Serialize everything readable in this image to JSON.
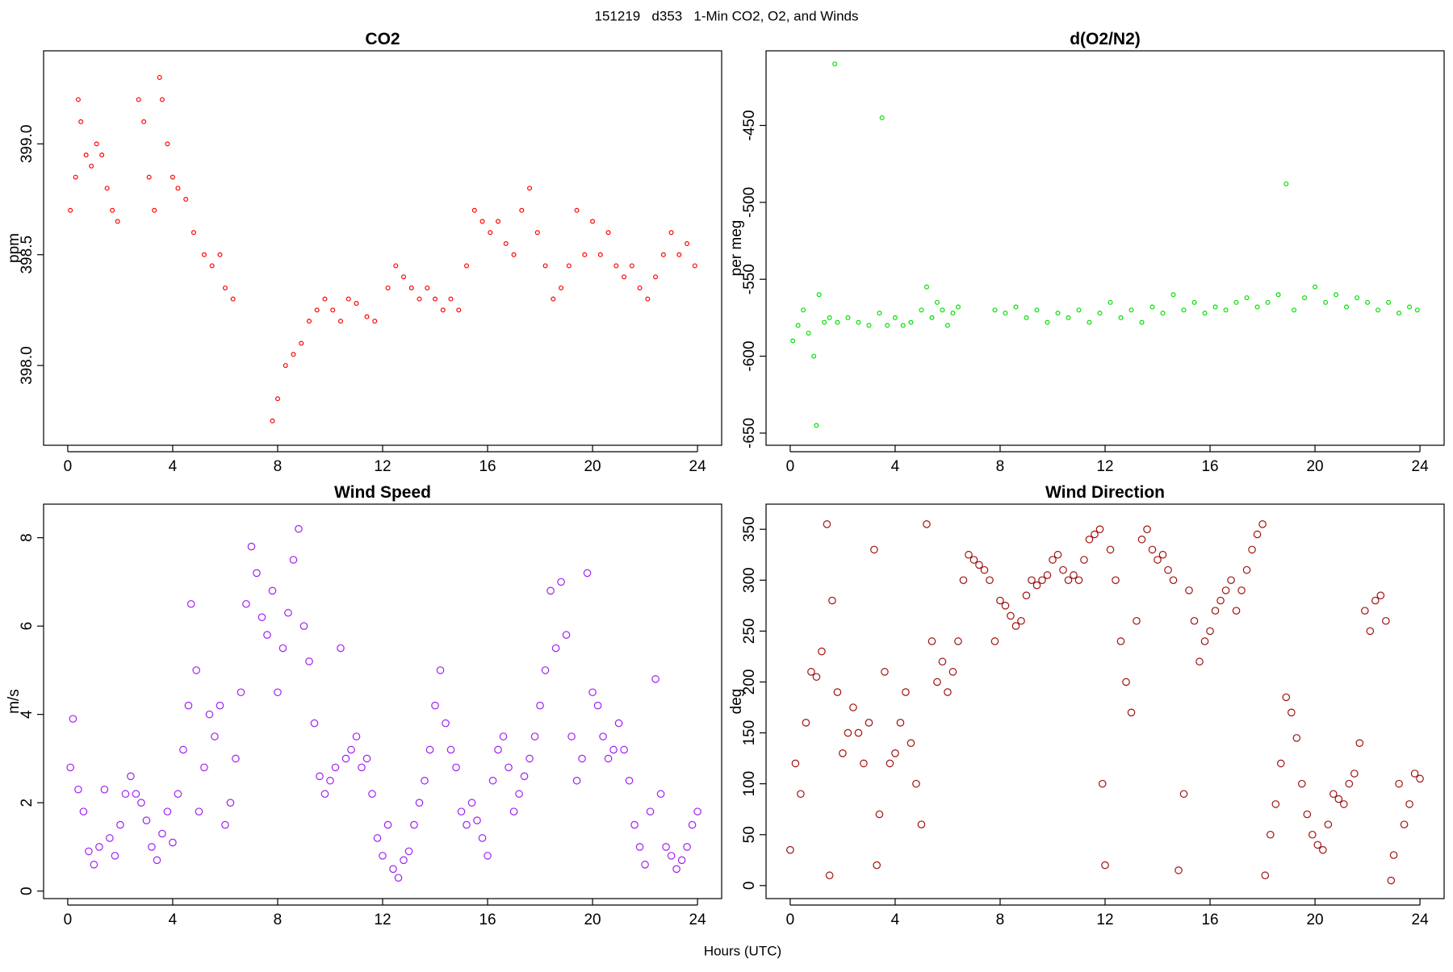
{
  "title": "151219   d353   1-Min CO2, O2, and Winds",
  "xlabel": "Hours (UTC)",
  "chart_data": [
    {
      "type": "scatter",
      "title": "CO2",
      "ylabel": "ppm",
      "color": "#ff0000",
      "point_size": 2.4,
      "xlim": [
        -0.92,
        24.92
      ],
      "xticks": [
        0,
        4,
        8,
        12,
        16,
        20,
        24
      ],
      "ylim": [
        397.64,
        399.42
      ],
      "yticks": [
        {
          "value": 398,
          "label": "398.0"
        },
        398.5,
        {
          "value": 399,
          "label": "399.0"
        }
      ],
      "x": [
        0.1,
        0.3,
        0.4,
        0.5,
        0.7,
        0.9,
        1.1,
        1.3,
        1.5,
        1.7,
        1.9,
        2.7,
        2.9,
        3.1,
        3.3,
        3.5,
        3.6,
        3.8,
        4.0,
        4.2,
        4.5,
        4.8,
        5.2,
        5.5,
        5.8,
        6.0,
        6.3,
        7.8,
        8.0,
        8.3,
        8.6,
        8.9,
        9.2,
        9.5,
        9.8,
        10.1,
        10.4,
        10.7,
        11.0,
        11.4,
        11.7,
        12.2,
        12.5,
        12.8,
        13.1,
        13.4,
        13.7,
        14.0,
        14.3,
        14.6,
        14.9,
        15.2,
        15.5,
        15.8,
        16.1,
        16.4,
        16.7,
        17.0,
        17.3,
        17.6,
        17.9,
        18.2,
        18.5,
        18.8,
        19.1,
        19.4,
        19.7,
        20.0,
        20.3,
        20.6,
        20.9,
        21.2,
        21.5,
        21.8,
        22.1,
        22.4,
        22.7,
        23.0,
        23.3,
        23.6,
        23.9
      ],
      "values": [
        398.7,
        398.85,
        399.2,
        399.1,
        398.95,
        398.9,
        399.0,
        398.95,
        398.8,
        398.7,
        398.65,
        399.2,
        399.1,
        398.85,
        398.7,
        399.3,
        399.2,
        399.0,
        398.85,
        398.8,
        398.75,
        398.6,
        398.5,
        398.45,
        398.5,
        398.35,
        398.3,
        397.75,
        397.85,
        398.0,
        398.05,
        398.1,
        398.2,
        398.25,
        398.3,
        398.25,
        398.2,
        398.3,
        398.28,
        398.22,
        398.2,
        398.35,
        398.45,
        398.4,
        398.35,
        398.3,
        398.35,
        398.3,
        398.25,
        398.3,
        398.25,
        398.45,
        398.7,
        398.65,
        398.6,
        398.65,
        398.55,
        398.5,
        398.7,
        398.8,
        398.6,
        398.45,
        398.3,
        398.35,
        398.45,
        398.7,
        398.5,
        398.65,
        398.5,
        398.6,
        398.45,
        398.4,
        398.45,
        398.35,
        398.3,
        398.4,
        398.5,
        398.6,
        398.5,
        398.55,
        398.45
      ]
    },
    {
      "type": "scatter",
      "title": "d(O2/N2)",
      "ylabel": "per meg",
      "color": "#00e000",
      "point_size": 2.4,
      "xlim": [
        -0.92,
        24.92
      ],
      "xticks": [
        0,
        4,
        8,
        12,
        16,
        20,
        24
      ],
      "ylim": [
        -657.9,
        -401.5
      ],
      "yticks": [
        -650,
        -600,
        -550,
        -500,
        -450
      ],
      "x": [
        0.1,
        0.3,
        0.5,
        0.7,
        0.9,
        1.0,
        1.1,
        1.3,
        1.5,
        1.7,
        1.8,
        2.2,
        2.6,
        3.0,
        3.4,
        3.5,
        3.7,
        4.0,
        4.3,
        4.6,
        5.0,
        5.2,
        5.4,
        5.6,
        5.8,
        6.0,
        6.2,
        6.4,
        7.8,
        8.2,
        8.6,
        9.0,
        9.4,
        9.8,
        10.2,
        10.6,
        11.0,
        11.4,
        11.8,
        12.2,
        12.6,
        13.0,
        13.4,
        13.8,
        14.2,
        14.6,
        15.0,
        15.4,
        15.8,
        16.2,
        16.6,
        17.0,
        17.4,
        17.8,
        18.2,
        18.6,
        18.9,
        19.2,
        19.6,
        20.0,
        20.4,
        20.8,
        21.2,
        21.6,
        22.0,
        22.4,
        22.8,
        23.2,
        23.6,
        23.9
      ],
      "values": [
        -590,
        -580,
        -570,
        -585,
        -600,
        -645,
        -560,
        -578,
        -575,
        -410,
        -578,
        -575,
        -578,
        -580,
        -572,
        -445,
        -580,
        -575,
        -580,
        -578,
        -570,
        -555,
        -575,
        -565,
        -570,
        -580,
        -572,
        -568,
        -570,
        -572,
        -568,
        -575,
        -570,
        -578,
        -572,
        -575,
        -570,
        -578,
        -572,
        -565,
        -575,
        -570,
        -578,
        -568,
        -572,
        -560,
        -570,
        -565,
        -572,
        -568,
        -570,
        -565,
        -562,
        -568,
        -565,
        -560,
        -488,
        -570,
        -562,
        -555,
        -565,
        -560,
        -568,
        -562,
        -565,
        -570,
        -565,
        -572,
        -568,
        -570
      ]
    },
    {
      "type": "scatter",
      "title": "Wind Speed",
      "ylabel": "m/s",
      "color": "#a020f0",
      "point_size": 4.2,
      "xlim": [
        -0.92,
        24.92
      ],
      "xticks": [
        0,
        4,
        8,
        12,
        16,
        20,
        24
      ],
      "ylim": [
        -0.17,
        8.76
      ],
      "yticks": [
        0,
        2,
        4,
        6,
        8
      ],
      "x": [
        0.1,
        0.2,
        0.4,
        0.6,
        0.8,
        1.0,
        1.2,
        1.4,
        1.6,
        1.8,
        2.0,
        2.2,
        2.4,
        2.6,
        2.8,
        3.0,
        3.2,
        3.4,
        3.6,
        3.8,
        4.0,
        4.2,
        4.4,
        4.6,
        4.7,
        4.9,
        5.0,
        5.2,
        5.4,
        5.6,
        5.8,
        6.0,
        6.2,
        6.4,
        6.6,
        6.8,
        7.0,
        7.2,
        7.4,
        7.6,
        7.8,
        8.0,
        8.2,
        8.4,
        8.6,
        8.8,
        9.0,
        9.2,
        9.4,
        9.6,
        9.8,
        10.0,
        10.2,
        10.4,
        10.6,
        10.8,
        11.0,
        11.2,
        11.4,
        11.6,
        11.8,
        12.0,
        12.2,
        12.4,
        12.6,
        12.8,
        13.0,
        13.2,
        13.4,
        13.6,
        13.8,
        14.0,
        14.2,
        14.4,
        14.6,
        14.8,
        15.0,
        15.2,
        15.4,
        15.6,
        15.8,
        16.0,
        16.2,
        16.4,
        16.6,
        16.8,
        17.0,
        17.2,
        17.4,
        17.6,
        17.8,
        18.0,
        18.2,
        18.4,
        18.6,
        18.8,
        19.0,
        19.2,
        19.4,
        19.6,
        19.8,
        20.0,
        20.2,
        20.4,
        20.6,
        20.8,
        21.0,
        21.2,
        21.4,
        21.6,
        21.8,
        22.0,
        22.2,
        22.4,
        22.6,
        22.8,
        23.0,
        23.2,
        23.4,
        23.6,
        23.8,
        24.0
      ],
      "values": [
        2.8,
        3.9,
        2.3,
        1.8,
        0.9,
        0.6,
        1.0,
        2.3,
        1.2,
        0.8,
        1.5,
        2.2,
        2.6,
        2.2,
        2.0,
        1.6,
        1.0,
        0.7,
        1.3,
        1.8,
        1.1,
        2.2,
        3.2,
        4.2,
        6.5,
        5.0,
        1.8,
        2.8,
        4.0,
        3.5,
        4.2,
        1.5,
        2.0,
        3.0,
        4.5,
        6.5,
        7.8,
        7.2,
        6.2,
        5.8,
        6.8,
        4.5,
        5.5,
        6.3,
        7.5,
        8.2,
        6.0,
        5.2,
        3.8,
        2.6,
        2.2,
        2.5,
        2.8,
        5.5,
        3.0,
        3.2,
        3.5,
        2.8,
        3.0,
        2.2,
        1.2,
        0.8,
        1.5,
        0.5,
        0.3,
        0.7,
        0.9,
        1.5,
        2.0,
        2.5,
        3.2,
        4.2,
        5.0,
        3.8,
        3.2,
        2.8,
        1.8,
        1.5,
        2.0,
        1.6,
        1.2,
        0.8,
        2.5,
        3.2,
        3.5,
        2.8,
        1.8,
        2.2,
        2.6,
        3.0,
        3.5,
        4.2,
        5.0,
        6.8,
        5.5,
        7.0,
        5.8,
        3.5,
        2.5,
        3.0,
        7.2,
        4.5,
        4.2,
        3.5,
        3.0,
        3.2,
        3.8,
        3.2,
        2.5,
        1.5,
        1.0,
        0.6,
        1.8,
        4.8,
        2.2,
        1.0,
        0.8,
        0.5,
        0.7,
        1.0,
        1.5,
        1.8
      ]
    },
    {
      "type": "scatter",
      "title": "Wind Direction",
      "ylabel": "deg",
      "color": "#a01010",
      "point_size": 4.2,
      "xlim": [
        -0.92,
        24.92
      ],
      "xticks": [
        0,
        4,
        8,
        12,
        16,
        20,
        24
      ],
      "ylim": [
        -12.8,
        374.7
      ],
      "yticks": [
        0,
        50,
        100,
        150,
        200,
        250,
        300,
        350
      ],
      "x": [
        0.0,
        0.2,
        0.4,
        0.6,
        0.8,
        1.0,
        1.2,
        1.4,
        1.5,
        1.6,
        1.8,
        2.0,
        2.2,
        2.4,
        2.6,
        2.8,
        3.0,
        3.2,
        3.3,
        3.4,
        3.6,
        3.8,
        4.0,
        4.2,
        4.4,
        4.6,
        4.8,
        5.0,
        5.2,
        5.4,
        5.6,
        5.8,
        6.0,
        6.2,
        6.4,
        6.6,
        6.8,
        7.0,
        7.2,
        7.4,
        7.6,
        7.8,
        8.0,
        8.2,
        8.4,
        8.6,
        8.8,
        9.0,
        9.2,
        9.4,
        9.6,
        9.8,
        10.0,
        10.2,
        10.4,
        10.6,
        10.8,
        11.0,
        11.2,
        11.4,
        11.6,
        11.8,
        11.9,
        12.0,
        12.2,
        12.4,
        12.6,
        12.8,
        13.0,
        13.2,
        13.4,
        13.6,
        13.8,
        14.0,
        14.2,
        14.4,
        14.6,
        14.8,
        15.0,
        15.2,
        15.4,
        15.6,
        15.8,
        16.0,
        16.2,
        16.4,
        16.6,
        16.8,
        17.0,
        17.2,
        17.4,
        17.6,
        17.8,
        18.0,
        18.1,
        18.3,
        18.5,
        18.7,
        18.9,
        19.1,
        19.3,
        19.5,
        19.7,
        19.9,
        20.1,
        20.3,
        20.5,
        20.7,
        20.9,
        21.1,
        21.3,
        21.5,
        21.7,
        21.9,
        22.1,
        22.3,
        22.5,
        22.7,
        22.9,
        23.0,
        23.2,
        23.4,
        23.6,
        23.8,
        24.0
      ],
      "values": [
        35,
        120,
        90,
        160,
        210,
        205,
        230,
        355,
        10,
        280,
        190,
        130,
        150,
        175,
        150,
        120,
        160,
        330,
        20,
        70,
        210,
        120,
        130,
        160,
        190,
        140,
        100,
        60,
        355,
        240,
        200,
        220,
        190,
        210,
        240,
        300,
        325,
        320,
        315,
        310,
        300,
        240,
        280,
        275,
        265,
        255,
        260,
        285,
        300,
        295,
        300,
        305,
        320,
        325,
        310,
        300,
        305,
        300,
        320,
        340,
        345,
        350,
        100,
        20,
        330,
        300,
        240,
        200,
        170,
        260,
        340,
        350,
        330,
        320,
        325,
        310,
        300,
        15,
        90,
        290,
        260,
        220,
        240,
        250,
        270,
        280,
        290,
        300,
        270,
        290,
        310,
        330,
        345,
        355,
        10,
        50,
        80,
        120,
        185,
        170,
        145,
        100,
        70,
        50,
        40,
        35,
        60,
        90,
        85,
        80,
        100,
        110,
        140,
        270,
        250,
        280,
        285,
        260,
        5,
        30,
        100,
        60,
        80,
        110,
        105
      ]
    }
  ]
}
